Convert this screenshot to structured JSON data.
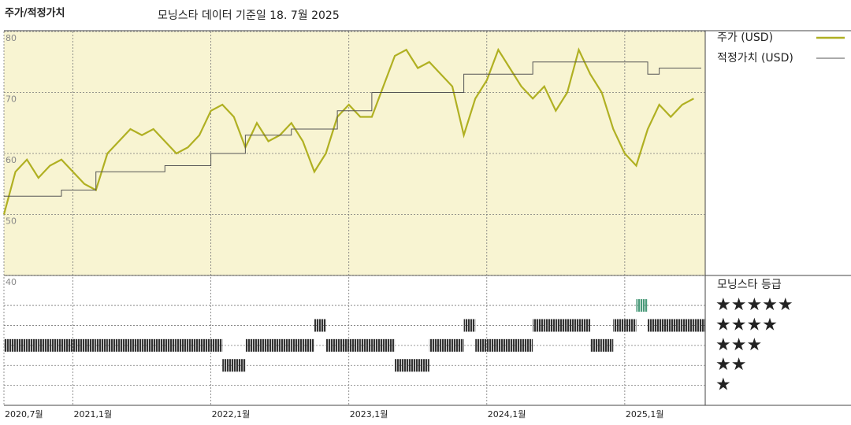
{
  "chart_data": [
    {
      "type": "line",
      "title": "주가/적정가치",
      "subtitle": "모닝스타 데이터 기준일 18. 7월 2025",
      "legend": "right",
      "grid": true,
      "x": [
        "2020-07",
        "2020-08",
        "2020-09",
        "2020-10",
        "2020-11",
        "2020-12",
        "2021-01",
        "2021-02",
        "2021-03",
        "2021-04",
        "2021-05",
        "2021-06",
        "2021-07",
        "2021-08",
        "2021-09",
        "2021-10",
        "2021-11",
        "2021-12",
        "2022-01",
        "2022-02",
        "2022-03",
        "2022-04",
        "2022-05",
        "2022-06",
        "2022-07",
        "2022-08",
        "2022-09",
        "2022-10",
        "2022-11",
        "2022-12",
        "2023-01",
        "2023-02",
        "2023-03",
        "2023-04",
        "2023-05",
        "2023-06",
        "2023-07",
        "2023-08",
        "2023-09",
        "2023-10",
        "2023-11",
        "2023-12",
        "2024-01",
        "2024-02",
        "2024-03",
        "2024-04",
        "2024-05",
        "2024-06",
        "2024-07",
        "2024-08",
        "2024-09",
        "2024-10",
        "2024-11",
        "2024-12",
        "2025-01",
        "2025-02",
        "2025-03",
        "2025-04",
        "2025-05",
        "2025-06",
        "2025-07"
      ],
      "series": [
        {
          "name": "주가 (USD)",
          "color": "#b0b022",
          "values": [
            50,
            57,
            59,
            56,
            58,
            59,
            57,
            55,
            54,
            60,
            62,
            64,
            63,
            64,
            62,
            60,
            61,
            63,
            67,
            68,
            66,
            61,
            65,
            62,
            63,
            65,
            62,
            57,
            60,
            66,
            68,
            66,
            66,
            71,
            76,
            77,
            74,
            75,
            73,
            71,
            63,
            69,
            72,
            77,
            74,
            71,
            69,
            71,
            67,
            70,
            77,
            73,
            70,
            64,
            60,
            58,
            64,
            68,
            66,
            68,
            69
          ]
        },
        {
          "name": "적정가치 (USD)",
          "color": "#555555",
          "step": true,
          "values": [
            53,
            53,
            53,
            53,
            53,
            54,
            54,
            54,
            57,
            57,
            57,
            57,
            57,
            57,
            58,
            58,
            58,
            58,
            60,
            60,
            60,
            63,
            63,
            63,
            63,
            64,
            64,
            64,
            64,
            67,
            67,
            67,
            70,
            70,
            70,
            70,
            70,
            70,
            70,
            70,
            73,
            73,
            73,
            73,
            73,
            73,
            75,
            75,
            75,
            75,
            75,
            75,
            75,
            75,
            75,
            75,
            73,
            74,
            74,
            74,
            74
          ]
        }
      ],
      "xlim": [
        "2020-07",
        "2025-08"
      ],
      "xticks": [
        {
          "value": "2020-07",
          "label": "2020,7월"
        },
        {
          "value": "2021-01",
          "label": "2021,1월"
        },
        {
          "value": "2022-01",
          "label": "2022,1월"
        },
        {
          "value": "2023-01",
          "label": "2023,1월"
        },
        {
          "value": "2024-01",
          "label": "2024,1월"
        },
        {
          "value": "2025-01",
          "label": "2025,1월"
        }
      ],
      "ylim": [
        40,
        80
      ],
      "yticks": [
        40,
        50,
        60,
        70,
        80
      ]
    },
    {
      "type": "rating",
      "title": "모닝스타 등급",
      "color": "#333333",
      "colors": {
        "5": "#4a9a7a"
      },
      "x": [
        "2020-07",
        "2020-08",
        "2020-09",
        "2020-10",
        "2020-11",
        "2020-12",
        "2021-01",
        "2021-02",
        "2021-03",
        "2021-04",
        "2021-05",
        "2021-06",
        "2021-07",
        "2021-08",
        "2021-09",
        "2021-10",
        "2021-11",
        "2021-12",
        "2022-01",
        "2022-02",
        "2022-03",
        "2022-04",
        "2022-05",
        "2022-06",
        "2022-07",
        "2022-08",
        "2022-09",
        "2022-10",
        "2022-11",
        "2022-12",
        "2023-01",
        "2023-02",
        "2023-03",
        "2023-04",
        "2023-05",
        "2023-06",
        "2023-07",
        "2023-08",
        "2023-09",
        "2023-10",
        "2023-11",
        "2023-12",
        "2024-01",
        "2024-02",
        "2024-03",
        "2024-04",
        "2024-05",
        "2024-06",
        "2024-07",
        "2024-08",
        "2024-09",
        "2024-10",
        "2024-11",
        "2024-12",
        "2025-01",
        "2025-02",
        "2025-03",
        "2025-04",
        "2025-05",
        "2025-06",
        "2025-07"
      ],
      "values": [
        3,
        3,
        3,
        3,
        3,
        3,
        3,
        3,
        3,
        3,
        3,
        3,
        3,
        3,
        3,
        3,
        3,
        3,
        3,
        2,
        2,
        3,
        3,
        3,
        3,
        3,
        3,
        4,
        3,
        3,
        3,
        3,
        3,
        3,
        2,
        2,
        2,
        3,
        3,
        3,
        4,
        3,
        3,
        3,
        3,
        3,
        4,
        4,
        4,
        4,
        4,
        3,
        3,
        4,
        4,
        5,
        4,
        4,
        4,
        4,
        4
      ],
      "ylim": [
        0,
        6.5
      ],
      "yticks": [
        {
          "value": 5,
          "label": "★★★★★"
        },
        {
          "value": 4,
          "label": "★★★★"
        },
        {
          "value": 3,
          "label": "★★★"
        },
        {
          "value": 2,
          "label": "★★"
        },
        {
          "value": 1,
          "label": "★"
        }
      ]
    }
  ]
}
